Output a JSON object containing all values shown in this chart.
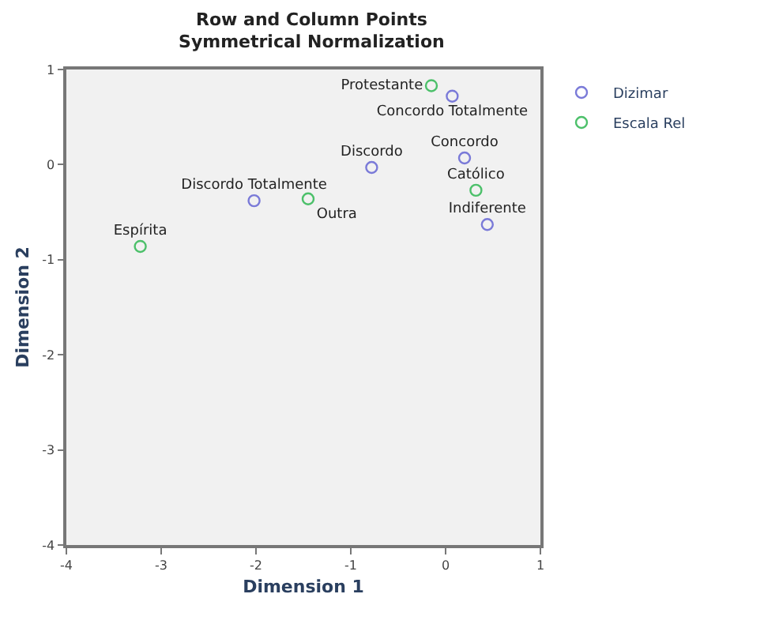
{
  "chart_data": {
    "type": "scatter",
    "title": "Row and Column Points",
    "subtitle": "Symmetrical Normalization",
    "xlabel": "Dimension 1",
    "ylabel": "Dimension 2",
    "series": [
      {
        "name": "Dizimar",
        "color": "#7a7ad8",
        "x": [
          0.07,
          0.2,
          0.44,
          -0.78,
          -2.02
        ],
        "values": [
          0.72,
          0.07,
          -0.63,
          -0.03,
          -0.38
        ],
        "value_labels": [
          "Concordo Totalmente",
          "Concordo",
          "Indiferente",
          "Discordo",
          "Discordo Totalmente"
        ]
      },
      {
        "name": "Escala Rel",
        "color": "#4cc06a",
        "x": [
          -0.15,
          0.32,
          -1.45,
          -3.22
        ],
        "values": [
          0.83,
          -0.27,
          -0.36,
          -0.86
        ],
        "value_labels": [
          "Protestante",
          "Católico",
          "Outra",
          "Espírita"
        ]
      }
    ],
    "xlim": [
      -4,
      1
    ],
    "xticks": [
      -4,
      -3,
      -2,
      -1,
      0,
      1
    ],
    "ylim": [
      -4,
      1
    ],
    "yticks": [
      -4,
      -3,
      -2,
      -1,
      0,
      1
    ],
    "grid": false,
    "legend": "top right",
    "marker": "circle"
  }
}
